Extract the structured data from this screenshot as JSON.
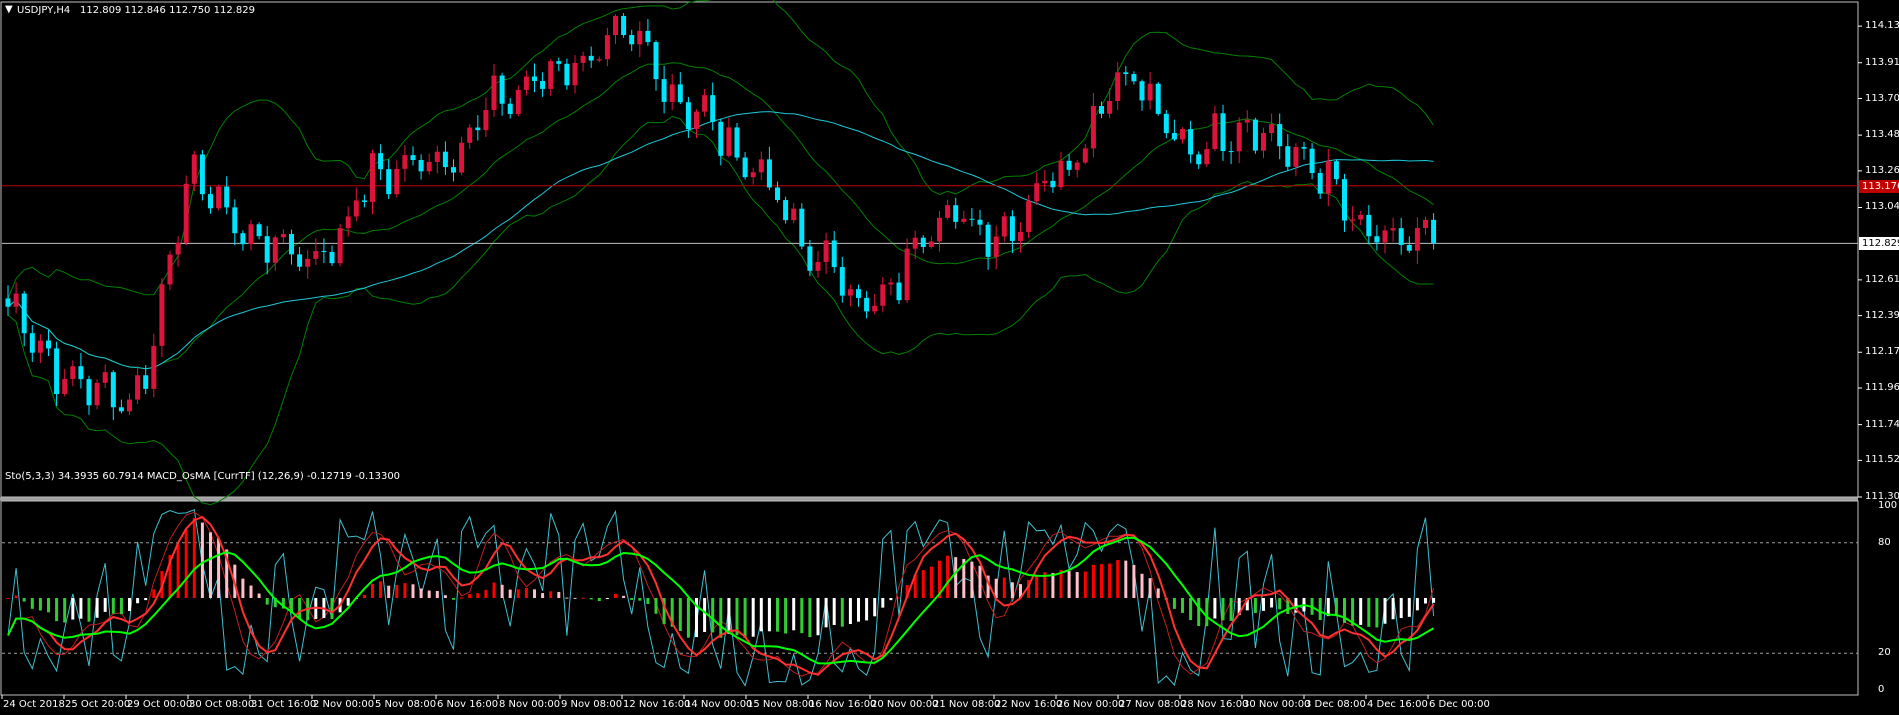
{
  "main": {
    "symbol_label": "USDJPY,H4",
    "ohlc_readout": "112.809 112.846 112.750 112.829",
    "price_ticks": [
      "114.135",
      "113.915",
      "113.700",
      "113.480",
      "113.265",
      "113.045",
      "112.829",
      "112.610",
      "112.395",
      "112.175",
      "111.960",
      "111.740",
      "111.525",
      "111.305"
    ],
    "current_price_label": "112.829",
    "red_line_label": "113.176",
    "current_price": 112.829,
    "red_line_price": 113.176,
    "ylim": [
      111.305,
      114.28
    ]
  },
  "sub": {
    "indicator_label": "Sto(5,3,3) 34.3935 60.7914  MACD_OsMA [CurrTF] (12,26,9) -0.12719 -0.13300",
    "level_ticks": [
      "100",
      "80",
      "20",
      "0"
    ],
    "ylim": [
      0,
      100
    ]
  },
  "time_axis": [
    "24 Oct 2018",
    "25 Oct 20:00",
    "29 Oct 00:00",
    "30 Oct 08:00",
    "31 Oct 16:00",
    "2 Nov 00:00",
    "5 Nov 08:00",
    "6 Nov 16:00",
    "8 Nov 00:00",
    "9 Nov 08:00",
    "12 Nov 16:00",
    "14 Nov 00:00",
    "15 Nov 08:00",
    "16 Nov 16:00",
    "20 Nov 00:00",
    "21 Nov 08:00",
    "22 Nov 16:00",
    "26 Nov 00:00",
    "27 Nov 08:00",
    "28 Nov 16:00",
    "30 Nov 00:00",
    "3 Dec 08:00",
    "4 Dec 16:00",
    "6 Dec 00:00"
  ],
  "colors": {
    "background": "#000000",
    "bull": "#dc143c",
    "bear": "#00e5ff",
    "bollinger": "#008000",
    "ma": "#1ec8d8",
    "red_line": "#c00000",
    "current_line": "#c0c0c0",
    "hist_up_strong": "#ff0000",
    "hist_up_weak": "#ffc0cb",
    "hist_down_strong": "#32cd32",
    "hist_down_weak": "#ffffff",
    "sto_main": "#ff3030",
    "sto_signal": "#00ff00",
    "grid_text": "#ffffff"
  },
  "chart_data": [
    {
      "type": "candlestick",
      "title": "USDJPY,H4",
      "y_axis_ticks": [
        114.135,
        113.915,
        113.7,
        113.48,
        113.265,
        113.045,
        112.829,
        112.61,
        112.395,
        112.175,
        111.96,
        111.74,
        111.525,
        111.305
      ],
      "ylim": [
        111.305,
        114.28
      ],
      "anchors": [
        {
          "x": "24 Oct 2018",
          "close": 112.45
        },
        {
          "x": "25 Oct 20:00",
          "close": 112.0
        },
        {
          "x": "29 Oct 00:00",
          "close": 111.9
        },
        {
          "x": "30 Oct 08:00",
          "close": 113.2
        },
        {
          "x": "31 Oct 16:00",
          "close": 112.85
        },
        {
          "x": "2 Nov 00:00",
          "close": 112.75
        },
        {
          "x": "5 Nov 08:00",
          "close": 113.25
        },
        {
          "x": "6 Nov 16:00",
          "close": 113.35
        },
        {
          "x": "8 Nov 00:00",
          "close": 113.7
        },
        {
          "x": "9 Nov 08:00",
          "close": 113.9
        },
        {
          "x": "12 Nov 16:00",
          "close": 114.05
        },
        {
          "x": "14 Nov 00:00",
          "close": 113.65
        },
        {
          "x": "15 Nov 08:00",
          "close": 113.3
        },
        {
          "x": "16 Nov 16:00",
          "close": 112.75
        },
        {
          "x": "20 Nov 00:00",
          "close": 112.45
        },
        {
          "x": "21 Nov 08:00",
          "close": 113.0
        },
        {
          "x": "22 Nov 16:00",
          "close": 112.9
        },
        {
          "x": "26 Nov 00:00",
          "close": 113.3
        },
        {
          "x": "27 Nov 08:00",
          "close": 113.85
        },
        {
          "x": "28 Nov 16:00",
          "close": 113.4
        },
        {
          "x": "30 Nov 00:00",
          "close": 113.55
        },
        {
          "x": "3 Dec 08:00",
          "close": 113.3
        },
        {
          "x": "4 Dec 16:00",
          "close": 112.85
        },
        {
          "x": "6 Dec 00:00",
          "close": 112.83
        }
      ]
    },
    {
      "type": "line",
      "title": "Sto(5,3,3)",
      "ylim": [
        0,
        100
      ],
      "levels": [
        80,
        20
      ],
      "series": [
        {
          "name": "34.3935",
          "values": []
        },
        {
          "name": "60.7914",
          "values": []
        }
      ]
    }
  ]
}
